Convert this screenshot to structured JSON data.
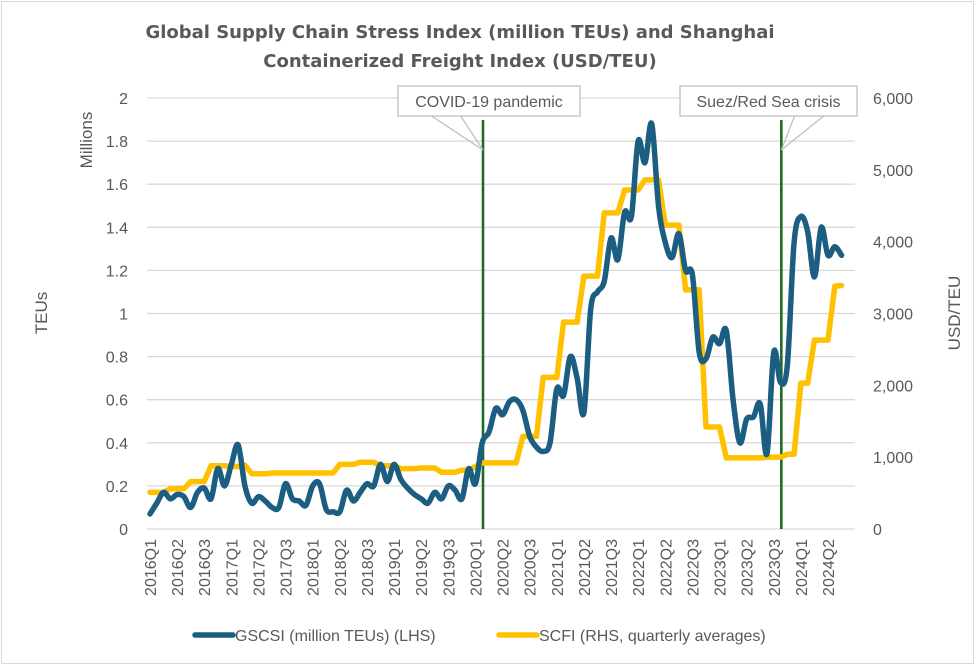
{
  "chart_data": {
    "type": "line",
    "title_lines": [
      "Global Supply Chain Stress Index (million TEUs) and Shanghai",
      "Containerized Freight Index (USD/TEU)"
    ],
    "frequency": "monthly",
    "x_start": "2016-01",
    "x_tick_labels": [
      "2016Q1",
      "2016Q2",
      "2016Q3",
      "2017Q1",
      "2017Q2",
      "2017Q3",
      "2018Q1",
      "2018Q2",
      "2018Q3",
      "2019Q1",
      "2019Q2",
      "2019Q3",
      "2020Q1",
      "2020Q2",
      "2020Q3",
      "2021Q1",
      "2021Q2",
      "2021Q3",
      "2022Q1",
      "2022Q2",
      "2022Q3",
      "2023Q1",
      "2023Q2",
      "2023Q3",
      "2024Q1",
      "2024Q2"
    ],
    "left_axis": {
      "title": "TEUs",
      "unit_label": "Millions",
      "ylim": [
        0,
        2
      ],
      "ticks": [
        "0",
        "0.2",
        "0.4",
        "0.6",
        "0.8",
        "1",
        "1.2",
        "1.4",
        "1.6",
        "1.8",
        "2"
      ]
    },
    "right_axis": {
      "title": "USD/TEU",
      "ylim": [
        0,
        6000
      ],
      "ticks": [
        "0",
        "1,000",
        "2,000",
        "3,000",
        "4,000",
        "5,000",
        "6,000"
      ]
    },
    "grid": true,
    "legend_position": "bottom",
    "series": [
      {
        "name": "GSCSI (million TEUs) (LHS)",
        "axis": "left",
        "color": "#1b5e82",
        "values": [
          0.07,
          0.12,
          0.17,
          0.14,
          0.16,
          0.15,
          0.1,
          0.17,
          0.19,
          0.14,
          0.28,
          0.2,
          0.3,
          0.39,
          0.2,
          0.12,
          0.15,
          0.13,
          0.1,
          0.1,
          0.21,
          0.14,
          0.13,
          0.11,
          0.2,
          0.21,
          0.09,
          0.08,
          0.08,
          0.18,
          0.13,
          0.17,
          0.21,
          0.2,
          0.3,
          0.22,
          0.3,
          0.23,
          0.19,
          0.16,
          0.14,
          0.12,
          0.17,
          0.14,
          0.2,
          0.18,
          0.14,
          0.28,
          0.21,
          0.4,
          0.45,
          0.56,
          0.53,
          0.59,
          0.6,
          0.55,
          0.43,
          0.38,
          0.36,
          0.4,
          0.65,
          0.62,
          0.8,
          0.7,
          0.54,
          1.02,
          1.1,
          1.15,
          1.35,
          1.25,
          1.47,
          1.45,
          1.8,
          1.7,
          1.88,
          1.5,
          1.33,
          1.26,
          1.37,
          1.2,
          1.18,
          0.82,
          0.79,
          0.89,
          0.86,
          0.92,
          0.6,
          0.4,
          0.51,
          0.52,
          0.58,
          0.35,
          0.82,
          0.68,
          0.76,
          1.33,
          1.45,
          1.38,
          1.17,
          1.4,
          1.27,
          1.31,
          1.27
        ]
      },
      {
        "name": "SCFI (RHS, quarterly averages)",
        "axis": "right",
        "color": "#ffc000",
        "values": [
          510,
          510,
          510,
          560,
          560,
          560,
          660,
          660,
          660,
          880,
          880,
          880,
          870,
          870,
          890,
          770,
          770,
          770,
          780,
          780,
          780,
          780,
          780,
          780,
          780,
          780,
          780,
          780,
          900,
          900,
          900,
          930,
          930,
          930,
          880,
          880,
          880,
          840,
          840,
          840,
          850,
          850,
          850,
          790,
          790,
          790,
          820,
          820,
          870,
          920,
          920,
          920,
          920,
          920,
          920,
          1290,
          1290,
          1290,
          2110,
          2110,
          2110,
          2880,
          2880,
          2880,
          3520,
          3520,
          3520,
          4400,
          4400,
          4400,
          4720,
          4720,
          4720,
          4860,
          4860,
          4860,
          4230,
          4230,
          4230,
          3330,
          3330,
          3330,
          1420,
          1420,
          1420,
          990,
          990,
          990,
          990,
          990,
          990,
          1000,
          1000,
          1000,
          1040,
          1040,
          2030,
          2030,
          2630,
          2630,
          2630,
          3380,
          3390
        ]
      }
    ],
    "annotations": [
      {
        "label": "COVID-19 pandemic",
        "x": "2020-03"
      },
      {
        "label": "Suez/Red Sea crisis",
        "x": "2023-11"
      }
    ]
  }
}
